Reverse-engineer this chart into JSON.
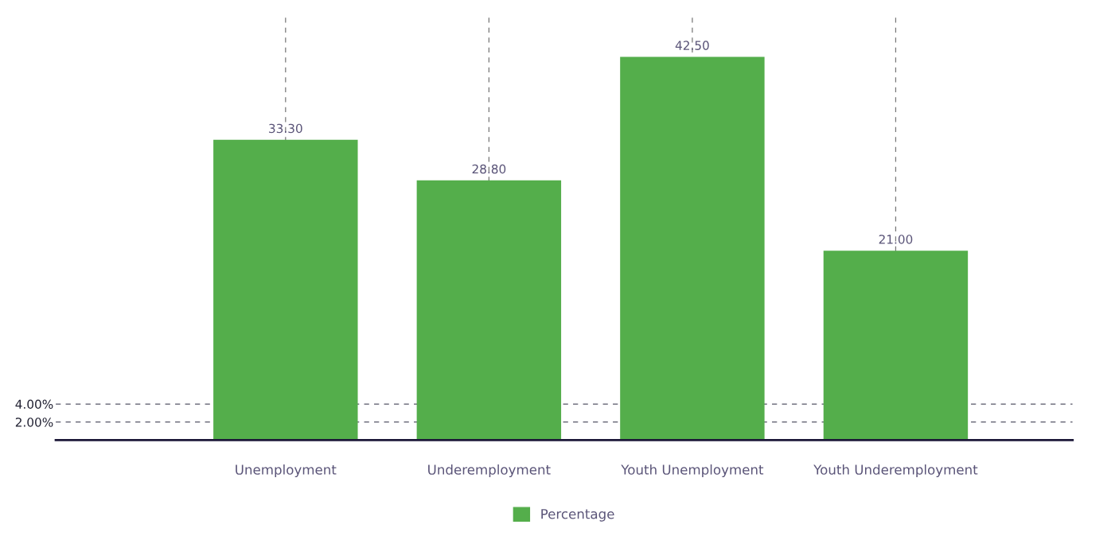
{
  "chart_data": {
    "type": "bar",
    "categories": [
      "Unemployment",
      "Underemployment",
      "Youth Unemployment",
      "Youth Underemployment"
    ],
    "series": [
      {
        "name": "Percentage",
        "color": "#54ae4b",
        "values": [
          33.3,
          28.8,
          42.5,
          21.0
        ],
        "value_labels": [
          "33.30",
          "28.80",
          "42.50",
          "21.00"
        ]
      }
    ],
    "ylim": [
      0,
      47.3
    ],
    "yticks": [
      {
        "value": 2,
        "label": "2.00%"
      },
      {
        "value": 4,
        "label": "4.00%"
      }
    ],
    "grid": true,
    "legend": "bottom"
  }
}
